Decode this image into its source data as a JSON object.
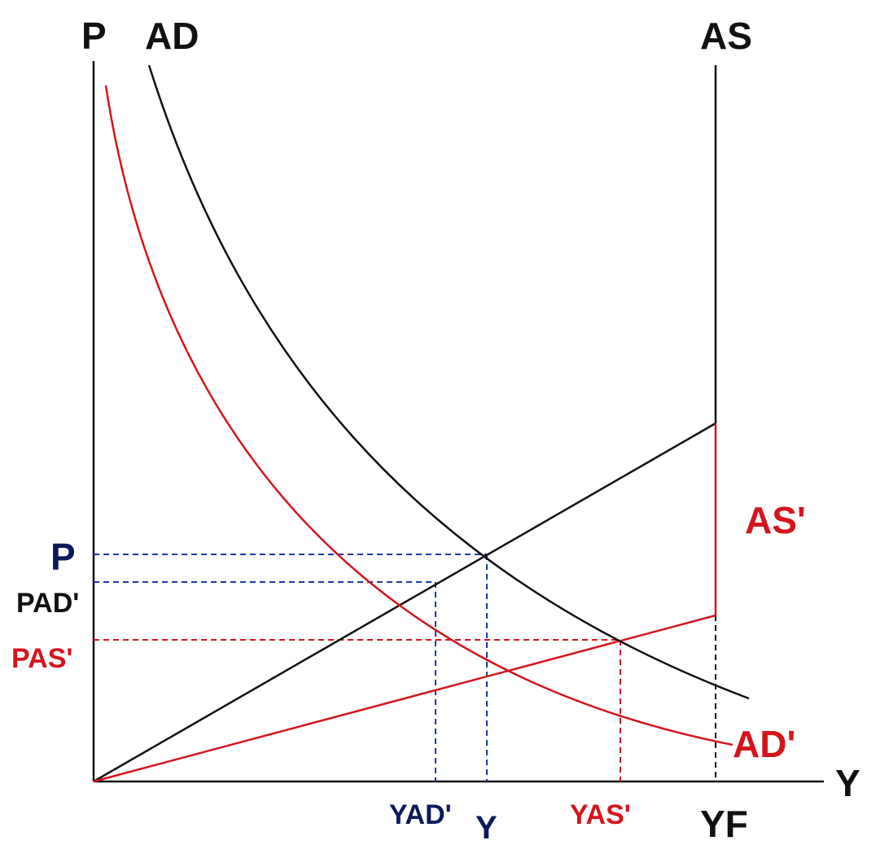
{
  "labels": {
    "p_axis": "P",
    "y_axis": "Y",
    "ad": "AD",
    "as": "AS",
    "as_prime": "AS'",
    "ad_prime": "AD'",
    "p_level": "P",
    "pad_prime": "PAD'",
    "pas_prime": "PAS'",
    "yad_prime": "YAD'",
    "y_level": "Y",
    "yas_prime": "YAS'",
    "yf": "YF"
  },
  "colors": {
    "black": "#111111",
    "red": "#d4151d",
    "blue": "#1b3aa8",
    "navy": "#0c1a5a"
  }
}
